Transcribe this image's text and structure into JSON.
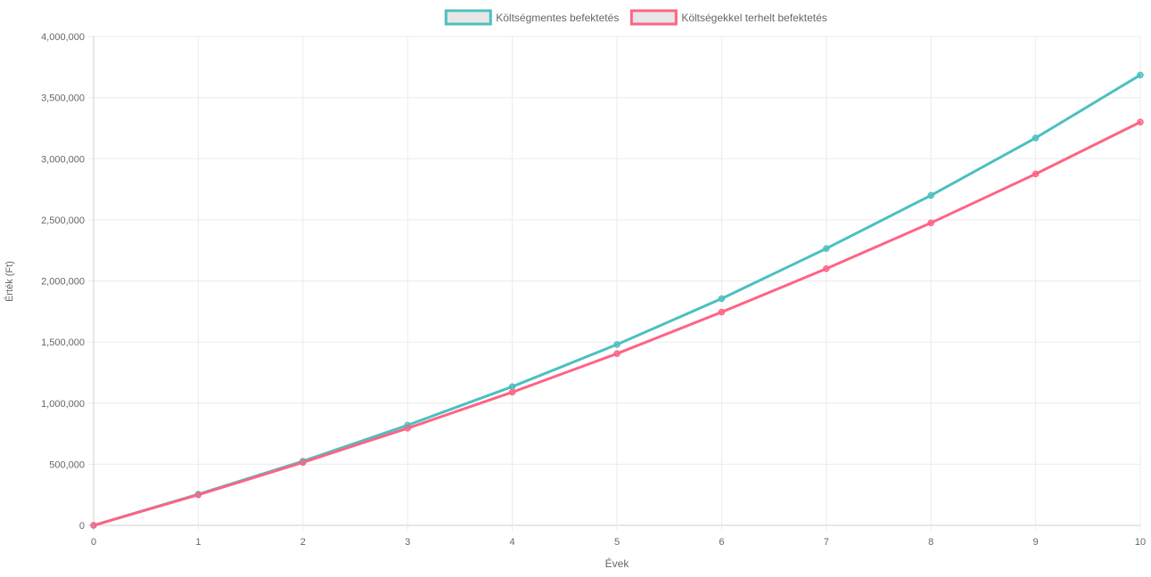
{
  "chart_data": {
    "type": "line",
    "title": "",
    "xlabel": "Évek",
    "ylabel": "Érték (Ft)",
    "x": [
      0,
      1,
      2,
      3,
      4,
      5,
      6,
      7,
      8,
      9,
      10
    ],
    "ylim": [
      0,
      4000000
    ],
    "y_ticks": [
      0,
      500000,
      1000000,
      1500000,
      2000000,
      2500000,
      3000000,
      3500000,
      4000000
    ],
    "y_tick_labels": [
      "0",
      "500,000",
      "1,000,000",
      "1,500,000",
      "2,000,000",
      "2,500,000",
      "3,000,000",
      "3,500,000",
      "4,000,000"
    ],
    "x_tick_labels": [
      "0",
      "1",
      "2",
      "3",
      "4",
      "5",
      "6",
      "7",
      "8",
      "9",
      "10"
    ],
    "grid": true,
    "legend_position": "top",
    "series": [
      {
        "name": "Költségmentes befektetés",
        "color": "#4bc0c0",
        "values": [
          0,
          255000,
          525000,
          820000,
          1135000,
          1480000,
          1855000,
          2265000,
          2700000,
          3170000,
          3685000
        ]
      },
      {
        "name": "Költségekkel terhelt befektetés",
        "color": "#ff6384",
        "values": [
          0,
          250000,
          515000,
          795000,
          1090000,
          1405000,
          1745000,
          2100000,
          2475000,
          2875000,
          3300000
        ]
      }
    ]
  }
}
